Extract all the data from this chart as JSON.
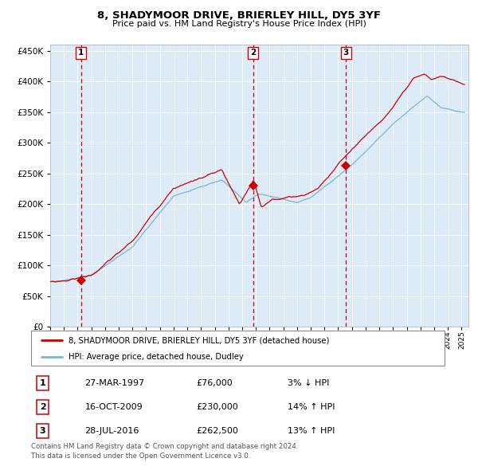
{
  "title": "8, SHADYMOOR DRIVE, BRIERLEY HILL, DY5 3YF",
  "subtitle": "Price paid vs. HM Land Registry's House Price Index (HPI)",
  "legend_line1": "8, SHADYMOOR DRIVE, BRIERLEY HILL, DY5 3YF (detached house)",
  "legend_line2": "HPI: Average price, detached house, Dudley",
  "transactions": [
    {
      "num": 1,
      "date": "1997-03-27",
      "price": 76000
    },
    {
      "num": 2,
      "date": "2009-10-16",
      "price": 230000
    },
    {
      "num": 3,
      "date": "2016-07-28",
      "price": 262500
    }
  ],
  "table_rows": [
    {
      "num": 1,
      "date": "27-MAR-1997",
      "price": "£76,000",
      "hpi": "3% ↓ HPI"
    },
    {
      "num": 2,
      "date": "16-OCT-2009",
      "price": "£230,000",
      "hpi": "14% ↑ HPI"
    },
    {
      "num": 3,
      "date": "28-JUL-2016",
      "price": "£262,500",
      "hpi": "13% ↑ HPI"
    }
  ],
  "footer": "Contains HM Land Registry data © Crown copyright and database right 2024.\nThis data is licensed under the Open Government Licence v3.0.",
  "hpi_color": "#7ab4d8",
  "price_color": "#cc0000",
  "marker_color": "#cc0000",
  "dashed_color": "#cc0000",
  "bg_color": "#ddeaf7",
  "grid_color": "#ffffff",
  "ylim": [
    0,
    460000
  ],
  "yticks": [
    0,
    50000,
    100000,
    150000,
    200000,
    250000,
    300000,
    350000,
    400000,
    450000
  ],
  "start_year": 1995,
  "end_year": 2025
}
